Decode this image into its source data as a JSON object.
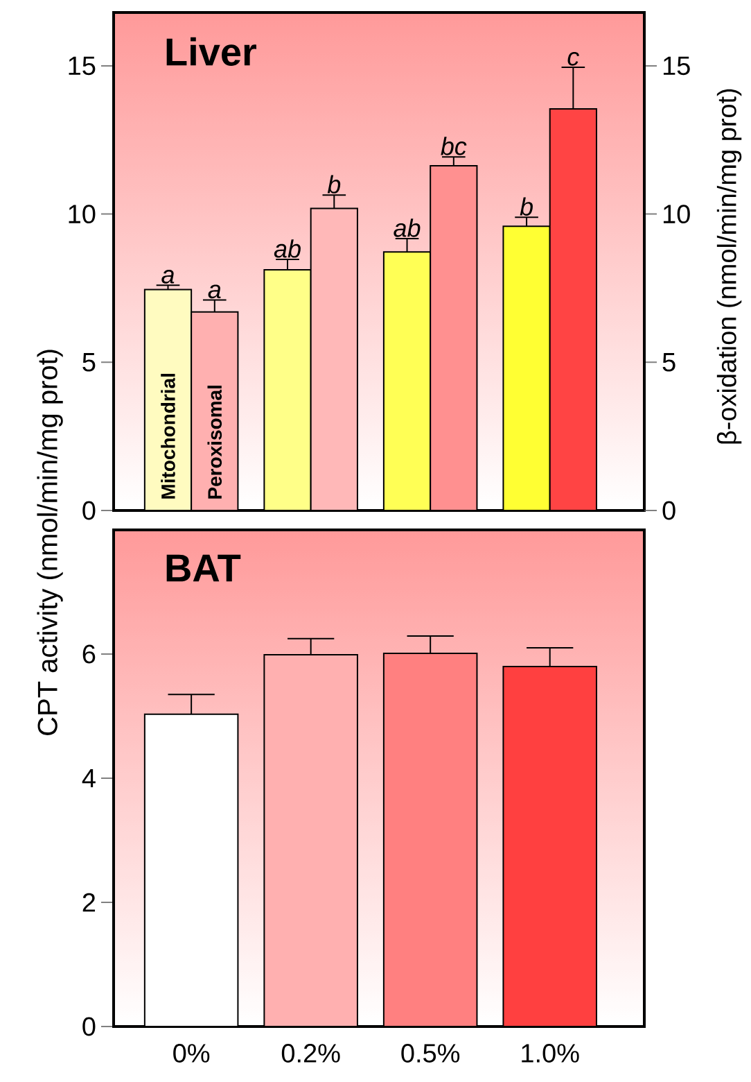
{
  "chart_data": [
    {
      "type": "bar",
      "title": "Liver",
      "categories": [
        null,
        null,
        null,
        null
      ],
      "tick_labels": "y",
      "ylim": [
        0,
        16.8
      ],
      "yticks": [
        0,
        5,
        10,
        15
      ],
      "y2lim": [
        0,
        16.8
      ],
      "y2ticks": [
        0,
        5,
        10,
        15
      ],
      "y2label": "β-oxidation (nmol/min/mg prot)",
      "series": [
        {
          "name": "Mitochondrial",
          "colors": [
            "#fffbc0",
            "#ffff88",
            "#ffff55",
            "#ffff33"
          ],
          "values": [
            7.45,
            8.12,
            8.72,
            9.59
          ],
          "errors": [
            0.15,
            0.35,
            0.45,
            0.3
          ],
          "value_labels": [
            "a",
            "ab",
            "ab",
            "b"
          ]
        },
        {
          "name": "Peroxisomal",
          "colors": [
            "#ffb0b0",
            "#ffb8b8",
            "#ff9090",
            "#ff4444"
          ],
          "values": [
            6.7,
            10.19,
            11.63,
            13.55
          ],
          "errors": [
            0.4,
            0.45,
            0.3,
            1.4
          ],
          "value_labels": [
            "a",
            "b",
            "bc",
            "c"
          ]
        }
      ]
    },
    {
      "type": "bar",
      "title": "BAT",
      "ylabel": "CPT activity (nmol/min/mg prot)",
      "categories": [
        "0%",
        "0.2%",
        "0.5%",
        "1.0%"
      ],
      "ylim": [
        0,
        8
      ],
      "yticks": [
        0,
        2,
        4,
        6
      ],
      "values": [
        5.03,
        5.99,
        6.01,
        5.8
      ],
      "errors": [
        0.32,
        0.26,
        0.28,
        0.3
      ],
      "colors": [
        "#ffffff",
        "#ffb0b0",
        "#ff8080",
        "#ff4040"
      ]
    }
  ]
}
